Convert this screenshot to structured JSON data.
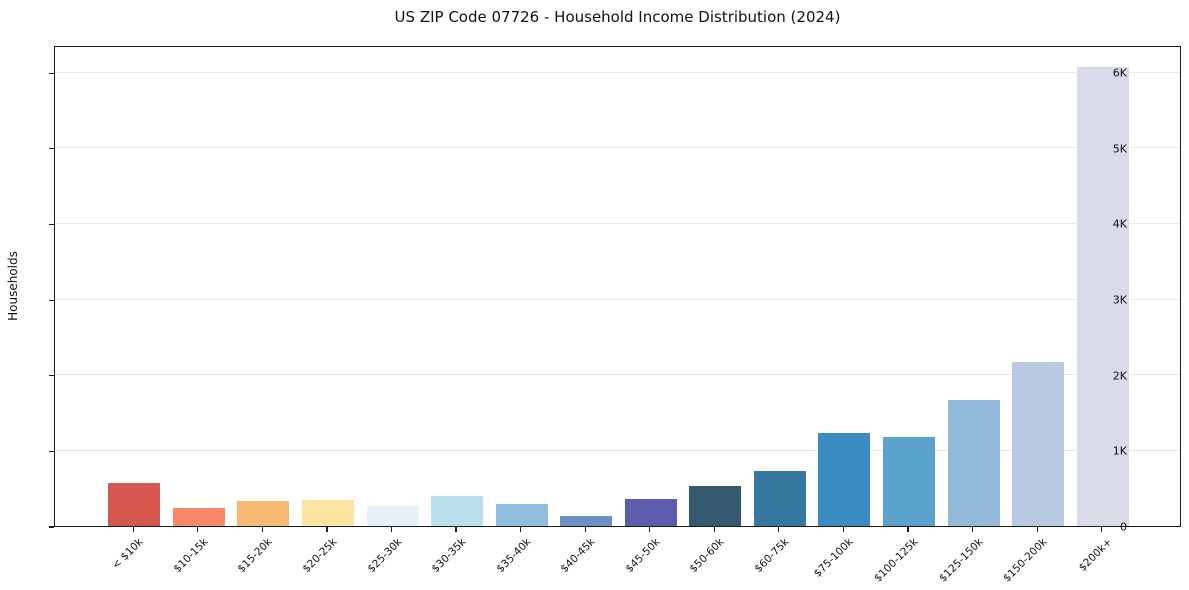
{
  "chart_data": {
    "type": "bar",
    "title": "US ZIP Code 07726 - Household Income Distribution (2024)",
    "xlabel": "",
    "ylabel": "Households",
    "categories": [
      "< $10k",
      "$10-15k",
      "$15-20k",
      "$20-25k",
      "$25-30k",
      "$30-35k",
      "$35-40k",
      "$40-45k",
      "$45-50k",
      "$50-60k",
      "$60-75k",
      "$75-100k",
      "$100-125k",
      "$125-150k",
      "$150-200k",
      "$200k+"
    ],
    "values": [
      568,
      232,
      326,
      347,
      270,
      395,
      286,
      132,
      356,
      524,
      731,
      1228,
      1174,
      1667,
      2169,
      6064
    ],
    "bar_colors": [
      "#d5574f",
      "#f48a68",
      "#f9b871",
      "#fde3a0",
      "#e4f1f7",
      "#bcdfec",
      "#90bddd",
      "#6b90c4",
      "#5c5cac",
      "#355a70",
      "#35789f",
      "#3a8dc2",
      "#5aa2cb",
      "#92b8da",
      "#bac9e2",
      "#d9dbe9"
    ],
    "ylim": [
      0,
      6360
    ],
    "yticks": [
      {
        "value": 0,
        "label": "0"
      },
      {
        "value": 1000,
        "label": "1K"
      },
      {
        "value": 2000,
        "label": "2K"
      },
      {
        "value": 3000,
        "label": "3K"
      },
      {
        "value": 4000,
        "label": "4K"
      },
      {
        "value": 5000,
        "label": "5K"
      },
      {
        "value": 6000,
        "label": "6K"
      }
    ],
    "grid": "horizontal",
    "legend": "none",
    "colors": {
      "background": "#ffffff",
      "spine": "#1c1c1c",
      "grid": "#e9e9ec",
      "text": "#111111"
    }
  }
}
